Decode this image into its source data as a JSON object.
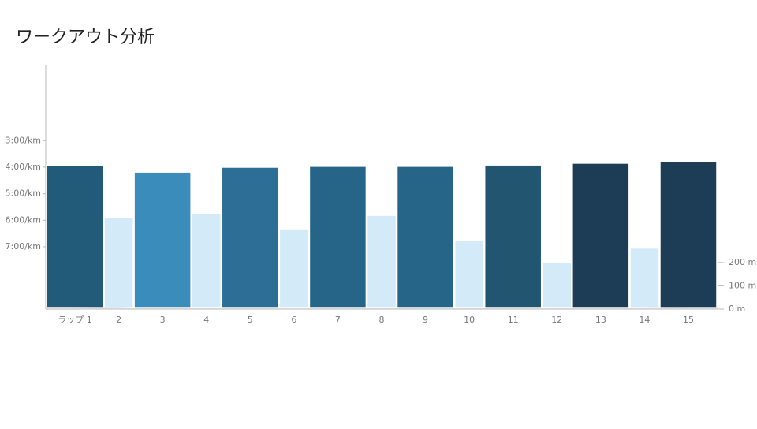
{
  "chart_data": {
    "type": "bar",
    "title": "ワークアウト分析",
    "categories": [
      "ラップ 1",
      "2",
      "3",
      "4",
      "5",
      "6",
      "7",
      "8",
      "9",
      "10",
      "11",
      "12",
      "13",
      "14",
      "15"
    ],
    "series": [
      {
        "values": [
          236,
          354,
          251,
          345,
          240,
          381,
          238,
          349,
          238,
          406,
          235,
          455,
          231,
          423,
          228
        ],
        "colors": [
          "#225a7a",
          "#d3ebf8",
          "#3a8dbb",
          "#d3ebf8",
          "#2d6e96",
          "#d3ebf8",
          "#276588",
          "#d3ebf8",
          "#276588",
          "#d3ebf8",
          "#215570",
          "#d3ebf8",
          "#1c3d55",
          "#d3ebf8",
          "#1c3d55"
        ]
      },
      {
        "type": "area",
        "axis": "y2",
        "color": "#d4d4d4",
        "values": [
          10,
          8,
          4,
          4,
          4,
          3,
          4,
          4,
          4,
          4,
          5,
          6,
          6,
          7,
          9
        ]
      }
    ],
    "ylim": [
      561,
      10
    ],
    "yticks": [
      {
        "value": 180,
        "label": "3:00/km"
      },
      {
        "value": 240,
        "label": "4:00/km"
      },
      {
        "value": 300,
        "label": "5:00/km"
      },
      {
        "value": 360,
        "label": "6:00/km"
      },
      {
        "value": 420,
        "label": "7:00/km"
      }
    ],
    "y2lim": [
      0,
      1045
    ],
    "y2ticks": [
      {
        "value": 0,
        "label": "0 m"
      },
      {
        "value": 100,
        "label": "100 m"
      },
      {
        "value": 200,
        "label": "200 m"
      }
    ]
  }
}
